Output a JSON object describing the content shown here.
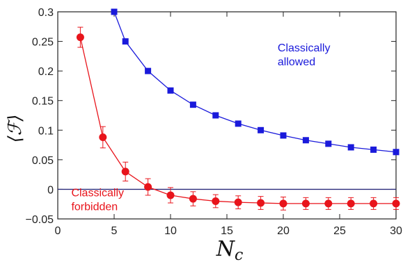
{
  "chart_data": {
    "type": "line",
    "xlabel": "N",
    "xlabel_sub": "c",
    "ylabel": "⟨ℱ⟩",
    "xlim": [
      0,
      30
    ],
    "ylim": [
      -0.05,
      0.3
    ],
    "xticks": [
      0,
      5,
      10,
      15,
      20,
      25,
      30
    ],
    "yticks": [
      -0.05,
      0,
      0.05,
      0.1,
      0.15,
      0.2,
      0.25,
      0.3
    ],
    "ytick_labels": [
      "−0.05",
      "0",
      "0.05",
      "0.1",
      "0.15",
      "0.2",
      "0.25",
      "0.3"
    ],
    "zero_line": true,
    "grid": false,
    "series": [
      {
        "color": "#1a1adb",
        "marker": "square",
        "x": [
          5,
          6,
          8,
          10,
          12,
          14,
          16,
          18,
          20,
          22,
          24,
          26,
          28,
          30
        ],
        "y": [
          0.3,
          0.25,
          0.2,
          0.167,
          0.143,
          0.125,
          0.111,
          0.1,
          0.091,
          0.083,
          0.077,
          0.071,
          0.067,
          0.063
        ]
      },
      {
        "color": "#e8141b",
        "marker": "circle",
        "x": [
          2,
          4,
          6,
          8,
          10,
          12,
          14,
          16,
          18,
          20,
          22,
          24,
          26,
          28,
          30
        ],
        "y": [
          0.257,
          0.088,
          0.03,
          0.004,
          -0.01,
          -0.016,
          -0.02,
          -0.022,
          -0.023,
          -0.024,
          -0.024,
          -0.024,
          -0.024,
          -0.024,
          -0.024
        ],
        "err": [
          0.017,
          0.018,
          0.016,
          0.014,
          0.013,
          0.012,
          0.011,
          0.011,
          0.011,
          0.011,
          0.01,
          0.01,
          0.01,
          0.01,
          0.01
        ]
      }
    ],
    "annotations": [
      {
        "lines": [
          "Classically",
          "allowed"
        ],
        "color": "#1a1adb",
        "at": [
          19.5,
          0.233
        ]
      },
      {
        "lines": [
          "Classically",
          "forbidden"
        ],
        "color": "#e8141b",
        "at": [
          1.2,
          -0.012
        ]
      }
    ],
    "zero_line_color": "#2a2a7a"
  }
}
